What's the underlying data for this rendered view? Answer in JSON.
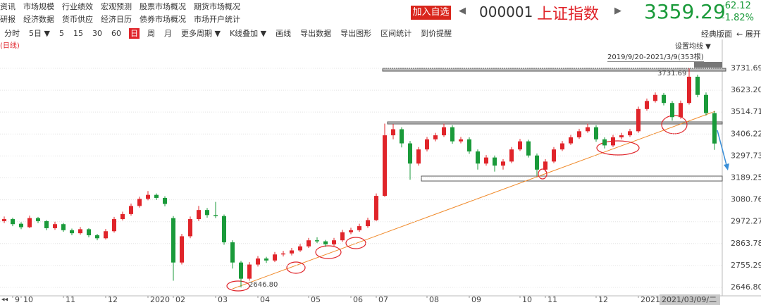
{
  "header": {
    "menu": [
      [
        "资讯",
        "市场规模",
        "行业绩效",
        "宏观预测",
        "股票市场概况",
        "期货市场概况"
      ],
      [
        "研报",
        "经济数据",
        "货币供应",
        "经济日历",
        "债券市场概况",
        "市场开户统计"
      ]
    ],
    "follow_button": "加入自选",
    "code": "000001",
    "name": "上证指数",
    "price": 3359.29,
    "change": -62.12,
    "change_pct": "-1.82%"
  },
  "toolbar": {
    "items": [
      "分时",
      "5日 ▼",
      "5",
      "15",
      "30",
      "60",
      "日",
      "周",
      "月",
      "更多周期 ▼",
      "K线叠加 ▼",
      "画线",
      "导出数据",
      "导出图形",
      "区间统计",
      "到价提醒"
    ],
    "selected": 6,
    "right": [
      "经典版面",
      "← 展开"
    ]
  },
  "chart_data": {
    "type": "candlestick",
    "period": "(日线)",
    "ma_button": "设置均线 ▼",
    "range_label": "2019/9/20-2021/3/9(353根)",
    "cursor_date": "2021/03/09/二",
    "up_color": "#e0242a",
    "down_color": "#1a9a3a",
    "grid": true,
    "ylim": [
      2605,
      3763
    ],
    "yticks": [
      {
        "value": 2646.8,
        "label": "2646.80"
      },
      2755.29,
      2863.78,
      2972.27,
      3080.76,
      3189.25,
      3297.73,
      3406.22,
      3514.71,
      {
        "value": 3623.2,
        "label": "3623.20"
      },
      3731.69
    ],
    "max_label": 3731.69,
    "min_label": {
      "value": 2646.8,
      "label": "2646.80"
    },
    "categories": [
      null,
      "9",
      "10",
      null,
      null,
      null,
      null,
      "11",
      null,
      null,
      null,
      null,
      "12",
      null,
      null,
      null,
      null,
      "2020",
      null,
      null,
      "02",
      null,
      null,
      null,
      null,
      "03",
      null,
      null,
      null,
      null,
      "04",
      null,
      null,
      null,
      null,
      null,
      "05",
      null,
      null,
      null,
      null,
      "06",
      null,
      null,
      "07",
      null,
      null,
      null,
      null,
      null,
      "08",
      null,
      null,
      null,
      null,
      "09",
      null,
      null,
      null,
      null,
      null,
      "10",
      null,
      null,
      "11",
      null,
      null,
      null,
      null,
      null,
      "12",
      null,
      null,
      null,
      null,
      "2021",
      null,
      null,
      null,
      null,
      null,
      null,
      null,
      null,
      null
    ],
    "ohlc": [
      [
        2975,
        2998,
        2965,
        2985
      ],
      [
        2985,
        2992,
        2950,
        2960
      ],
      [
        2962,
        2970,
        2935,
        2945
      ],
      [
        2945,
        3002,
        2940,
        2990
      ],
      [
        2990,
        2996,
        2965,
        2975
      ],
      [
        2975,
        2980,
        2930,
        2940
      ],
      [
        2940,
        2972,
        2932,
        2960
      ],
      [
        2960,
        2966,
        2922,
        2930
      ],
      [
        2930,
        2938,
        2905,
        2915
      ],
      [
        2915,
        2946,
        2908,
        2935
      ],
      [
        2935,
        2940,
        2895,
        2905
      ],
      [
        2905,
        2912,
        2880,
        2890
      ],
      [
        2890,
        2936,
        2884,
        2925
      ],
      [
        2925,
        2996,
        2918,
        2985
      ],
      [
        2985,
        3022,
        2978,
        3010
      ],
      [
        3010,
        3062,
        3002,
        3050
      ],
      [
        3050,
        3096,
        3042,
        3085
      ],
      [
        3085,
        3124,
        3078,
        3105
      ],
      [
        3105,
        3112,
        3080,
        3090
      ],
      [
        3090,
        3098,
        3048,
        3060
      ],
      [
        2990,
        3000,
        2680,
        2770
      ],
      [
        2770,
        2912,
        2760,
        2900
      ],
      [
        2900,
        2998,
        2890,
        2985
      ],
      [
        2985,
        3050,
        2975,
        3030
      ],
      [
        3030,
        3040,
        2992,
        3005
      ],
      [
        3005,
        3070,
        2990,
        3000
      ],
      [
        3000,
        3008,
        2858,
        2870
      ],
      [
        2870,
        2880,
        2740,
        2770
      ],
      [
        2770,
        2778,
        2646.8,
        2690
      ],
      [
        2690,
        2772,
        2680,
        2760
      ],
      [
        2760,
        2802,
        2750,
        2790
      ],
      [
        2790,
        2798,
        2768,
        2780
      ],
      [
        2780,
        2822,
        2772,
        2810
      ],
      [
        2810,
        2828,
        2800,
        2815
      ],
      [
        2815,
        2842,
        2805,
        2830
      ],
      [
        2830,
        2862,
        2822,
        2850
      ],
      [
        2850,
        2892,
        2842,
        2880
      ],
      [
        2880,
        2895,
        2866,
        2875
      ],
      [
        2875,
        2882,
        2848,
        2860
      ],
      [
        2860,
        2892,
        2852,
        2880
      ],
      [
        2880,
        2932,
        2872,
        2920
      ],
      [
        2920,
        2942,
        2910,
        2930
      ],
      [
        2930,
        2962,
        2922,
        2950
      ],
      [
        2950,
        2992,
        2942,
        2980
      ],
      [
        2980,
        3112,
        2975,
        3100
      ],
      [
        3100,
        3458,
        3095,
        3400
      ],
      [
        3400,
        3456,
        3380,
        3430
      ],
      [
        3430,
        3440,
        3340,
        3360
      ],
      [
        3360,
        3372,
        3180,
        3260
      ],
      [
        3260,
        3342,
        3250,
        3330
      ],
      [
        3330,
        3392,
        3320,
        3380
      ],
      [
        3380,
        3412,
        3370,
        3400
      ],
      [
        3400,
        3458,
        3392,
        3440
      ],
      [
        3440,
        3450,
        3358,
        3370
      ],
      [
        3370,
        3392,
        3360,
        3380
      ],
      [
        3380,
        3390,
        3308,
        3320
      ],
      [
        3320,
        3330,
        3230,
        3260
      ],
      [
        3260,
        3302,
        3250,
        3290
      ],
      [
        3290,
        3300,
        3220,
        3250
      ],
      [
        3250,
        3282,
        3230,
        3270
      ],
      [
        3270,
        3342,
        3262,
        3330
      ],
      [
        3330,
        3382,
        3322,
        3370
      ],
      [
        3370,
        3378,
        3290,
        3300
      ],
      [
        3300,
        3310,
        3200,
        3230
      ],
      [
        3230,
        3282,
        3220,
        3270
      ],
      [
        3270,
        3342,
        3262,
        3330
      ],
      [
        3330,
        3372,
        3322,
        3360
      ],
      [
        3360,
        3402,
        3352,
        3390
      ],
      [
        3390,
        3432,
        3382,
        3420
      ],
      [
        3420,
        3458,
        3412,
        3440
      ],
      [
        3440,
        3450,
        3368,
        3380
      ],
      [
        3380,
        3390,
        3335,
        3350
      ],
      [
        3350,
        3402,
        3342,
        3390
      ],
      [
        3390,
        3412,
        3380,
        3400
      ],
      [
        3400,
        3432,
        3392,
        3420
      ],
      [
        3420,
        3542,
        3412,
        3530
      ],
      [
        3530,
        3582,
        3522,
        3570
      ],
      [
        3570,
        3612,
        3562,
        3600
      ],
      [
        3600,
        3610,
        3548,
        3560
      ],
      [
        3560,
        3570,
        3472,
        3490
      ],
      [
        3490,
        3572,
        3482,
        3560
      ],
      [
        3560,
        3731.69,
        3552,
        3690
      ],
      [
        3690,
        3700,
        3588,
        3600
      ],
      [
        3600,
        3612,
        3498,
        3510
      ],
      [
        3510,
        3520,
        3328,
        3359.29
      ]
    ]
  }
}
